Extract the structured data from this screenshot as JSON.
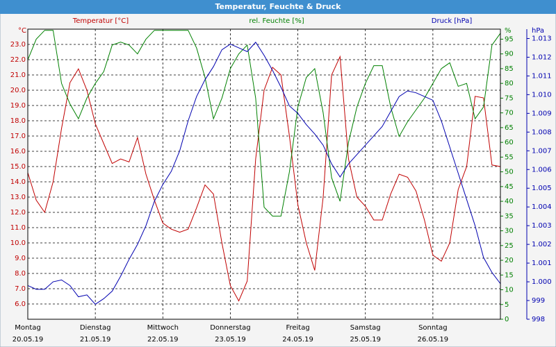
{
  "chart_data": {
    "type": "line",
    "title": "Temperatur, Feuchte & Druck",
    "xlim": [
      0,
      7
    ],
    "xticks": [
      {
        "value": 0,
        "label": "Montag",
        "date": "20.05.19"
      },
      {
        "value": 1,
        "label": "Dienstag",
        "date": "21.05.19"
      },
      {
        "value": 2,
        "label": "Mittwoch",
        "date": "22.05.19"
      },
      {
        "value": 3,
        "label": "Donnerstag",
        "date": "23.05.19"
      },
      {
        "value": 4,
        "label": "Freitag",
        "date": "24.05.19"
      },
      {
        "value": 5,
        "label": "Samstag",
        "date": "25.05.19"
      },
      {
        "value": 6,
        "label": "Sonntag",
        "date": "26.05.19"
      }
    ],
    "grid": true,
    "y_unit": "°C",
    "ylim": [
      5,
      24
    ],
    "yticks": [
      {
        "value": 6,
        "label": "6.0"
      },
      {
        "value": 7,
        "label": "7.0"
      },
      {
        "value": 8,
        "label": "8.0"
      },
      {
        "value": 9,
        "label": "9.0"
      },
      {
        "value": 10,
        "label": "10.0"
      },
      {
        "value": 11,
        "label": "11.0"
      },
      {
        "value": 12,
        "label": "12.0"
      },
      {
        "value": 13,
        "label": "13.0"
      },
      {
        "value": 14,
        "label": "14.0"
      },
      {
        "value": 15,
        "label": "15.0"
      },
      {
        "value": 16,
        "label": "16.0"
      },
      {
        "value": 17,
        "label": "17.0"
      },
      {
        "value": 18,
        "label": "18.0"
      },
      {
        "value": 19,
        "label": "19.0"
      },
      {
        "value": 20,
        "label": "20.0"
      },
      {
        "value": 21,
        "label": "21.0"
      },
      {
        "value": 22,
        "label": "22.0"
      },
      {
        "value": 23,
        "label": "23.0"
      }
    ],
    "y2_unit": "%",
    "y2lim": [
      0,
      98.4
    ],
    "y2ticks": [
      0,
      5,
      10,
      15,
      20,
      25,
      30,
      35,
      40,
      45,
      50,
      55,
      60,
      65,
      70,
      75,
      80,
      85,
      90,
      95
    ],
    "y3_unit": "hPa",
    "y3lim": [
      998,
      1013.5
    ],
    "y3ticks": [
      998,
      999,
      {
        "value": 1000,
        "label": "1.000"
      },
      {
        "value": 1001,
        "label": "1.001"
      },
      {
        "value": 1002,
        "label": "1.002"
      },
      {
        "value": 1003,
        "label": "1.003"
      },
      {
        "value": 1004,
        "label": "1.004"
      },
      {
        "value": 1005,
        "label": "1.005"
      },
      {
        "value": 1006,
        "label": "1.006"
      },
      {
        "value": 1007,
        "label": "1.007"
      },
      {
        "value": 1008,
        "label": "1.008"
      },
      {
        "value": 1009,
        "label": "1.009"
      },
      {
        "value": 1010,
        "label": "1.010"
      },
      {
        "value": 1011,
        "label": "1.011"
      },
      {
        "value": 1012,
        "label": "1.012"
      },
      {
        "value": 1013,
        "label": "1.013"
      }
    ],
    "x": [
      0,
      0.125,
      0.25,
      0.375,
      0.5,
      0.625,
      0.75,
      0.875,
      1,
      1.125,
      1.25,
      1.375,
      1.5,
      1.625,
      1.75,
      1.875,
      2,
      2.125,
      2.25,
      2.375,
      2.5,
      2.625,
      2.75,
      2.875,
      3,
      3.125,
      3.25,
      3.375,
      3.5,
      3.625,
      3.75,
      3.875,
      4,
      4.125,
      4.25,
      4.375,
      4.5,
      4.625,
      4.75,
      4.875,
      5,
      5.125,
      5.25,
      5.375,
      5.5,
      5.625,
      5.75,
      5.875,
      6,
      6.125,
      6.25,
      6.375,
      6.5,
      6.625,
      6.75,
      6.875,
      7
    ],
    "series": [
      {
        "name": "Temperatur [°C]",
        "color": "#c00000",
        "axis": "y",
        "values": [
          14.6,
          12.8,
          12.0,
          14.0,
          17.5,
          20.5,
          21.4,
          20.0,
          17.8,
          16.5,
          15.2,
          15.5,
          15.3,
          16.9,
          14.5,
          12.8,
          11.3,
          10.9,
          10.7,
          10.9,
          12.3,
          13.8,
          13.2,
          10.0,
          7.2,
          6.2,
          7.5,
          15.5,
          20.0,
          21.5,
          21.0,
          17.0,
          12.5,
          10.0,
          8.2,
          13.0,
          21.0,
          22.2,
          15.5,
          13.0,
          12.4,
          11.5,
          11.5,
          13.2,
          14.5,
          14.3,
          13.4,
          11.5,
          9.2,
          8.8,
          10.0,
          13.5,
          15.0,
          19.6,
          19.5,
          15.1,
          15.0
        ]
      },
      {
        "name": "rel. Feuchte [%]",
        "color": "#008000",
        "axis": "y2",
        "values": [
          88,
          95,
          98,
          98,
          80,
          73,
          68,
          75,
          80,
          84,
          93,
          94,
          93,
          90,
          95,
          98,
          98,
          98,
          98,
          98,
          92,
          82,
          68,
          75,
          85,
          90,
          93,
          75,
          38,
          35,
          35,
          50,
          72,
          82,
          85,
          70,
          48,
          40,
          60,
          72,
          80,
          86,
          86,
          72,
          62,
          67,
          71,
          75,
          80,
          85,
          87,
          79,
          80,
          68,
          72,
          93,
          97
        ]
      },
      {
        "name": "Druck [hPa]",
        "color": "#0000b0",
        "axis": "y3",
        "values": [
          999.8,
          999.6,
          999.6,
          1000.0,
          1000.1,
          999.8,
          999.2,
          999.3,
          998.8,
          999.1,
          999.5,
          1000.3,
          1001.2,
          1002.0,
          1003.0,
          1004.3,
          1005.2,
          1005.9,
          1007.0,
          1008.6,
          1009.9,
          1010.8,
          1011.5,
          1012.4,
          1012.7,
          1012.5,
          1012.3,
          1012.8,
          1012.1,
          1011.3,
          1010.4,
          1009.4,
          1009.0,
          1008.4,
          1007.9,
          1007.3,
          1006.3,
          1005.6,
          1006.3,
          1006.8,
          1007.3,
          1007.8,
          1008.3,
          1009.1,
          1009.9,
          1010.2,
          1010.1,
          1009.9,
          1009.7,
          1008.6,
          1007.2,
          1005.8,
          1004.4,
          1003.0,
          1001.3,
          1000.5,
          999.9
        ]
      }
    ]
  }
}
